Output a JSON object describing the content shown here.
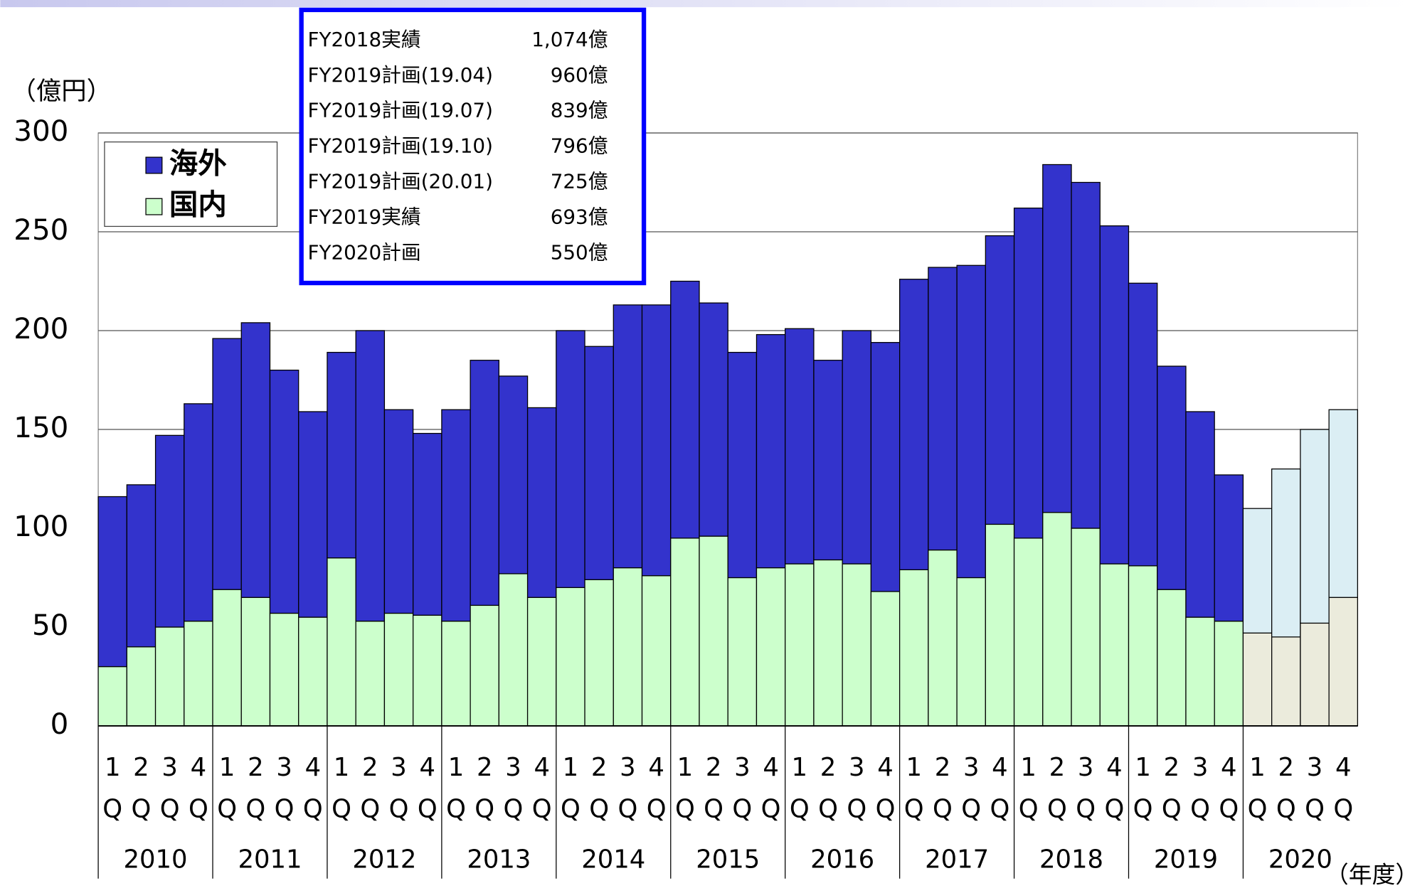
{
  "chart_data": {
    "type": "stacked_bar",
    "y_axis_label": "（億円）",
    "x_axis_label": "（年度）",
    "ylim": [
      0,
      300
    ],
    "yticks": [
      0,
      50,
      100,
      150,
      200,
      250,
      300
    ],
    "grid": true,
    "categories": [
      "1Q",
      "2Q",
      "3Q",
      "4Q",
      "1Q",
      "2Q",
      "3Q",
      "4Q",
      "1Q",
      "2Q",
      "3Q",
      "4Q",
      "1Q",
      "2Q",
      "3Q",
      "4Q",
      "1Q",
      "2Q",
      "3Q",
      "4Q",
      "1Q",
      "2Q",
      "3Q",
      "4Q",
      "1Q",
      "2Q",
      "3Q",
      "4Q",
      "1Q",
      "2Q",
      "3Q",
      "4Q",
      "1Q",
      "2Q",
      "3Q",
      "4Q",
      "1Q",
      "2Q",
      "3Q",
      "4Q",
      "1Q",
      "2Q",
      "3Q",
      "4Q"
    ],
    "groups": [
      "2010",
      "2011",
      "2012",
      "2013",
      "2014",
      "2015",
      "2016",
      "2017",
      "2018",
      "2019",
      "2020"
    ],
    "group_size": 4,
    "legend": "upper left",
    "series": [
      {
        "name": "国内",
        "color": "#ccffcc",
        "colors": [
          "#ccffcc",
          "#ccffcc",
          "#ccffcc",
          "#ccffcc",
          "#ccffcc",
          "#ccffcc",
          "#ccffcc",
          "#ccffcc",
          "#ccffcc",
          "#ccffcc",
          "#ccffcc",
          "#ccffcc",
          "#ccffcc",
          "#ccffcc",
          "#ccffcc",
          "#ccffcc",
          "#ccffcc",
          "#ccffcc",
          "#ccffcc",
          "#ccffcc",
          "#ccffcc",
          "#ccffcc",
          "#ccffcc",
          "#ccffcc",
          "#ccffcc",
          "#ccffcc",
          "#ccffcc",
          "#ccffcc",
          "#ccffcc",
          "#ccffcc",
          "#ccffcc",
          "#ccffcc",
          "#ccffcc",
          "#ccffcc",
          "#ccffcc",
          "#ccffcc",
          "#ccffcc",
          "#ccffcc",
          "#ccffcc",
          "#ccffcc",
          "#ebebdc",
          "#ebebdc",
          "#ebebdc",
          "#ebebdc"
        ],
        "values": [
          30,
          40,
          50,
          53,
          69,
          65,
          57,
          55,
          85,
          53,
          57,
          56,
          53,
          61,
          77,
          65,
          70,
          74,
          80,
          76,
          95,
          96,
          75,
          80,
          82,
          84,
          82,
          68,
          79,
          89,
          75,
          102,
          95,
          108,
          100,
          82,
          81,
          69,
          55,
          53,
          47,
          45,
          52,
          65
        ]
      },
      {
        "name": "海外",
        "color": "#3333cc",
        "colors": [
          "#3333cc",
          "#3333cc",
          "#3333cc",
          "#3333cc",
          "#3333cc",
          "#3333cc",
          "#3333cc",
          "#3333cc",
          "#3333cc",
          "#3333cc",
          "#3333cc",
          "#3333cc",
          "#3333cc",
          "#3333cc",
          "#3333cc",
          "#3333cc",
          "#3333cc",
          "#3333cc",
          "#3333cc",
          "#3333cc",
          "#3333cc",
          "#3333cc",
          "#3333cc",
          "#3333cc",
          "#3333cc",
          "#3333cc",
          "#3333cc",
          "#3333cc",
          "#3333cc",
          "#3333cc",
          "#3333cc",
          "#3333cc",
          "#3333cc",
          "#3333cc",
          "#3333cc",
          "#3333cc",
          "#3333cc",
          "#3333cc",
          "#3333cc",
          "#3333cc",
          "#dbeef4",
          "#dbeef4",
          "#dbeef4",
          "#dbeef4"
        ],
        "values": [
          86,
          82,
          97,
          110,
          127,
          139,
          123,
          104,
          104,
          147,
          103,
          92,
          107,
          124,
          100,
          96,
          130,
          118,
          133,
          137,
          130,
          118,
          114,
          118,
          119,
          101,
          118,
          126,
          147,
          143,
          158,
          146,
          167,
          176,
          175,
          171,
          143,
          113,
          104,
          74,
          63,
          85,
          98,
          95
        ]
      }
    ],
    "annotation": [
      {
        "label": "FY2018実績",
        "value": "1,074億"
      },
      {
        "label": "FY2019計画(19.04)",
        "value": "960億"
      },
      {
        "label": "FY2019計画(19.07)",
        "value": "839億"
      },
      {
        "label": "FY2019計画(19.10)",
        "value": "796億"
      },
      {
        "label": "FY2019計画(20.01)",
        "value": "725億"
      },
      {
        "label": "FY2019実績",
        "value": "693億"
      },
      {
        "label": "FY2020計画",
        "value": "550億"
      }
    ]
  }
}
